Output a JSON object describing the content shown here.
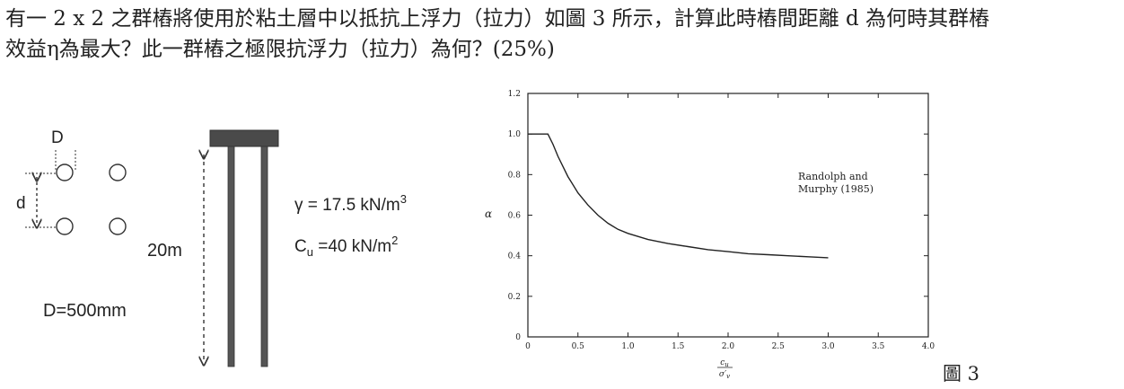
{
  "question": {
    "line1": "有一 2 x 2 之群樁將使用於粘土層中以抵抗上浮力（拉力）如圖 3 所示，計算此時樁間距離 d 為何時其群樁",
    "line2": "效益η為最大？此一群樁之極限抗浮力（拉力）為何？(25%)"
  },
  "diagram": {
    "plan_label_D": "D",
    "plan_label_d": "d",
    "diameter_label": "D=500mm",
    "length_label": "20m",
    "gamma_text": "γ = 17.5 kN/m",
    "gamma_sup": "3",
    "cu_C": "C",
    "cu_sub": "u",
    "cu_text": " =40 kN/m",
    "cu_sup": "2"
  },
  "figure_caption": "圖 3",
  "chart_data": {
    "type": "line",
    "title": "",
    "annotation": [
      "Randolph and",
      "Murphy (1985)"
    ],
    "ylabel": "α",
    "xlabel_num": "c",
    "xlabel_num_sub": "u",
    "xlabel_den": "σ′",
    "xlabel_den_sub": "v",
    "xlim": [
      0,
      4.0
    ],
    "ylim": [
      0,
      1.2
    ],
    "xticks": [
      "0",
      "0.5",
      "1.0",
      "1.5",
      "2.0",
      "2.5",
      "3.0",
      "3.5",
      "4.0"
    ],
    "yticks": [
      "0",
      "0.2",
      "0.4",
      "0.6",
      "0.8",
      "1.0",
      "1.2"
    ],
    "series": [
      {
        "x": [
          0.0,
          0.2,
          0.25,
          0.3,
          0.4,
          0.5,
          0.6,
          0.7,
          0.8,
          0.9,
          1.0,
          1.2,
          1.4,
          1.6,
          1.8,
          2.0,
          2.2,
          2.4,
          2.6,
          2.8,
          3.0
        ],
        "y": [
          1.0,
          1.0,
          0.95,
          0.89,
          0.79,
          0.71,
          0.65,
          0.6,
          0.56,
          0.53,
          0.51,
          0.48,
          0.46,
          0.445,
          0.43,
          0.42,
          0.41,
          0.405,
          0.4,
          0.395,
          0.39
        ]
      }
    ]
  }
}
